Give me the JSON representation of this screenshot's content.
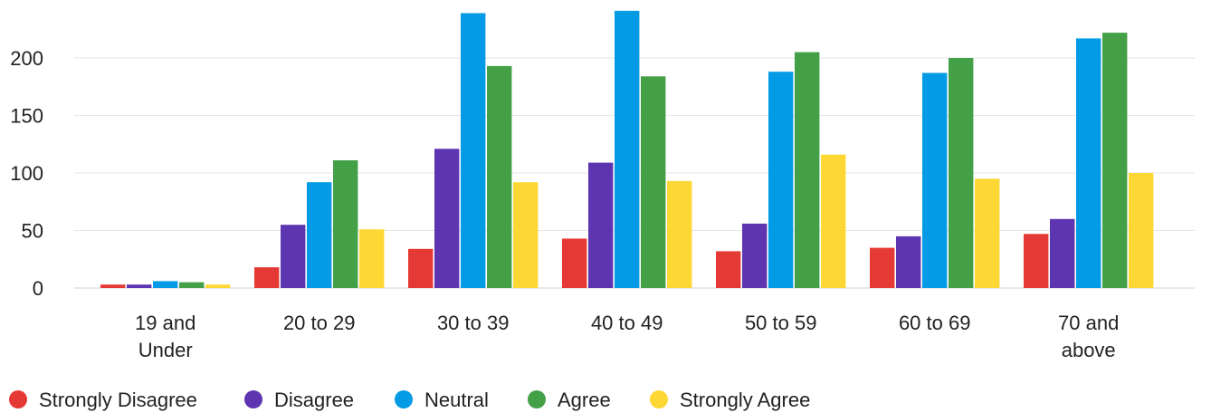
{
  "chart_data": {
    "type": "bar",
    "categories": [
      [
        "19 and",
        "Under"
      ],
      [
        "20 to 29"
      ],
      [
        "30 to 39"
      ],
      [
        "40 to 49"
      ],
      [
        "50 to 59"
      ],
      [
        "60 to 69"
      ],
      [
        "70 and",
        "above"
      ]
    ],
    "series": [
      {
        "name": "Strongly Disagree",
        "color": "#e53935",
        "values": [
          3,
          18,
          34,
          43,
          32,
          35,
          47
        ]
      },
      {
        "name": "Disagree",
        "color": "#5e35b1",
        "values": [
          3,
          55,
          121,
          109,
          56,
          45,
          60
        ]
      },
      {
        "name": "Neutral",
        "color": "#039be5",
        "values": [
          6,
          92,
          239,
          241,
          188,
          187,
          217
        ]
      },
      {
        "name": "Agree",
        "color": "#43a047",
        "values": [
          5,
          111,
          193,
          184,
          205,
          200,
          222
        ]
      },
      {
        "name": "Strongly Agree",
        "color": "#fdd835",
        "values": [
          3,
          51,
          92,
          93,
          116,
          95,
          100
        ]
      }
    ],
    "yticks": [
      0,
      50,
      100,
      150,
      200
    ],
    "ylim": [
      0,
      250
    ],
    "grid": true,
    "legend_position": "bottom-left",
    "title": "",
    "xlabel": "",
    "ylabel": ""
  }
}
